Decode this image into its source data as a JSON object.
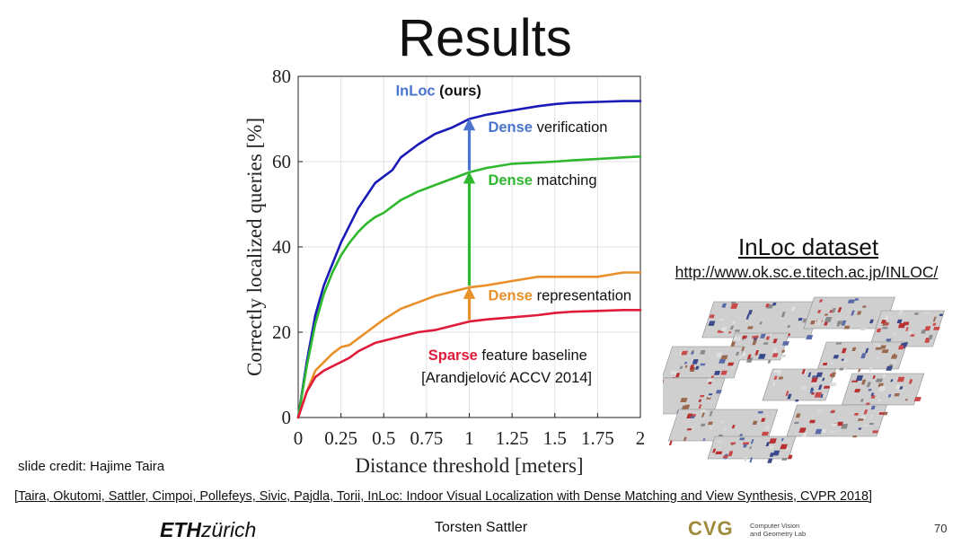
{
  "slide": {
    "title": "Results",
    "credit": "slide credit: Hajime Taira",
    "citation": "[Taira, Okutomi, Sattler, Cimpoi, Pollefeys, Sivic, Pajdla, Torii, InLoc: Indoor Visual Localization with Dense Matching and View Synthesis, CVPR 2018]",
    "presenter": "Torsten Sattler",
    "page_number": "70"
  },
  "logos": {
    "eth_bold": "ETH",
    "eth_rest": "zürich",
    "cvg_letters": "CVG",
    "cvg_line1": "Computer Vision",
    "cvg_line2": "and Geometry Lab"
  },
  "dataset": {
    "title": "InLoc dataset",
    "url": "http://www.ok.sc.e.titech.ac.jp/INLOC/"
  },
  "chart_data": {
    "type": "line",
    "xlabel": "Distance threshold [meters]",
    "ylabel": "Correctly localized queries [%]",
    "xlim": [
      0,
      2
    ],
    "ylim": [
      0,
      80
    ],
    "xticks": [
      0,
      0.25,
      0.5,
      0.75,
      1,
      1.25,
      1.5,
      1.75,
      2
    ],
    "xtick_labels": [
      "0",
      "0.25",
      "0.5",
      "0.75",
      "1",
      "1.25",
      "1.5",
      "1.75",
      "2"
    ],
    "yticks": [
      0,
      20,
      40,
      60,
      80
    ],
    "grid": true,
    "series": [
      {
        "key": "inloc",
        "color": "#1a1ab8",
        "x": [
          0,
          0.05,
          0.1,
          0.15,
          0.2,
          0.25,
          0.3,
          0.35,
          0.4,
          0.45,
          0.5,
          0.55,
          0.6,
          0.7,
          0.8,
          0.9,
          1.0,
          1.1,
          1.25,
          1.4,
          1.5,
          1.6,
          1.75,
          1.9,
          2.0
        ],
        "y": [
          0,
          13,
          24,
          31,
          36,
          41,
          45,
          49,
          52,
          55,
          56.5,
          58,
          61,
          64,
          66.5,
          68,
          70,
          71,
          72,
          73,
          73.5,
          73.8,
          74,
          74.2,
          74.2
        ]
      },
      {
        "key": "dense_matching",
        "color": "#2eb82e",
        "x": [
          0,
          0.05,
          0.1,
          0.15,
          0.2,
          0.25,
          0.3,
          0.35,
          0.4,
          0.45,
          0.5,
          0.6,
          0.7,
          0.8,
          0.9,
          1.0,
          1.1,
          1.25,
          1.4,
          1.5,
          1.6,
          1.75,
          1.9,
          2.0
        ],
        "y": [
          0,
          12,
          22,
          29,
          34,
          38,
          41,
          43.5,
          45.5,
          47,
          48,
          51,
          53,
          54.5,
          56,
          57.5,
          58.5,
          59.5,
          59.8,
          60,
          60.3,
          60.6,
          61,
          61.2
        ]
      },
      {
        "key": "dense_representation",
        "color": "#e8902a",
        "x": [
          0,
          0.05,
          0.1,
          0.15,
          0.2,
          0.25,
          0.3,
          0.35,
          0.4,
          0.45,
          0.5,
          0.6,
          0.7,
          0.8,
          0.9,
          1.0,
          1.1,
          1.25,
          1.4,
          1.5,
          1.6,
          1.75,
          1.9,
          2.0
        ],
        "y": [
          0,
          6,
          11,
          13,
          15,
          16.5,
          17,
          18.5,
          20,
          21.5,
          23,
          25.5,
          27,
          28.5,
          29.5,
          30.5,
          31,
          32,
          33,
          33,
          33,
          33,
          34,
          34
        ]
      },
      {
        "key": "sparse_baseline",
        "color": "#e01a3a",
        "x": [
          0,
          0.05,
          0.1,
          0.15,
          0.2,
          0.25,
          0.3,
          0.35,
          0.4,
          0.45,
          0.5,
          0.6,
          0.7,
          0.8,
          0.9,
          1.0,
          1.1,
          1.25,
          1.4,
          1.5,
          1.6,
          1.75,
          1.9,
          2.0
        ],
        "y": [
          0,
          6,
          9.5,
          11,
          12,
          13,
          14,
          15.5,
          16.5,
          17.5,
          18,
          19,
          20,
          20.5,
          21.5,
          22.5,
          23,
          23.5,
          24,
          24.5,
          24.8,
          25,
          25.2,
          25.2
        ]
      }
    ],
    "arrows": [
      {
        "key": "verification",
        "x": 1.0,
        "from": 57.5,
        "to": 70,
        "color": "#4a74d0"
      },
      {
        "key": "matching",
        "x": 1.0,
        "from": 30.5,
        "to": 57.5,
        "color": "#2eb82e"
      },
      {
        "key": "representation",
        "x": 1.0,
        "from": 22.5,
        "to": 30.5,
        "color": "#e8902a"
      }
    ],
    "annotations": [
      {
        "key": "inloc",
        "x": 0.57,
        "y": 75.5,
        "parts": [
          {
            "text": "InLoc",
            "color": "#4a74d0",
            "bold": true
          },
          {
            "text": " (ours)",
            "color": "#111111",
            "bold": true
          }
        ]
      },
      {
        "key": "verification",
        "x": 1.11,
        "y": 67,
        "parts": [
          {
            "text": "Dense",
            "color": "#4a74d0",
            "bold": true
          },
          {
            "text": " verification",
            "color": "#111111",
            "bold": false
          }
        ]
      },
      {
        "key": "matching",
        "x": 1.11,
        "y": 54.5,
        "parts": [
          {
            "text": "Dense",
            "color": "#2eb82e",
            "bold": true
          },
          {
            "text": " matching",
            "color": "#111111",
            "bold": false
          }
        ]
      },
      {
        "key": "representation",
        "x": 1.11,
        "y": 27.5,
        "parts": [
          {
            "text": "Dense",
            "color": "#e8902a",
            "bold": true
          },
          {
            "text": " representation",
            "color": "#111111",
            "bold": false
          }
        ]
      },
      {
        "key": "sparse",
        "x": 0.76,
        "y": 13.5,
        "parts": [
          {
            "text": "Sparse",
            "color": "#e01a3a",
            "bold": true
          },
          {
            "text": " feature baseline",
            "color": "#111111",
            "bold": false
          }
        ]
      },
      {
        "key": "citation",
        "x": 0.72,
        "y": 8.2,
        "parts": [
          {
            "text": "[Arandjelović ACCV 2014]",
            "color": "#111111",
            "bold": false
          }
        ]
      }
    ]
  }
}
